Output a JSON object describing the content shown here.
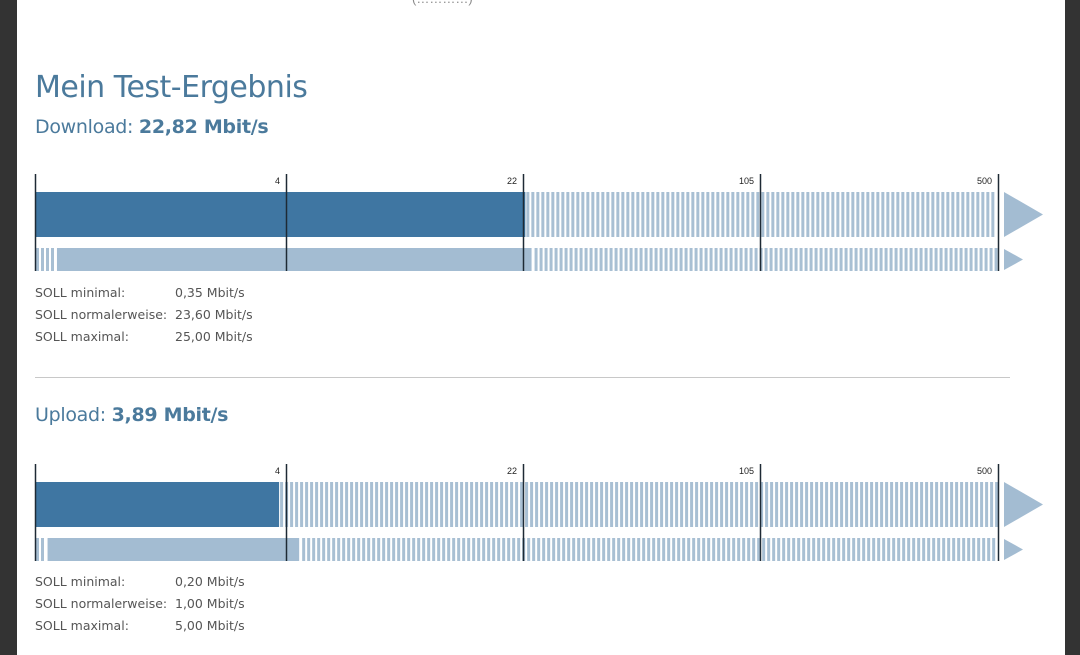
{
  "top_fragment": "(…………)",
  "title": "Mein Test-Ergebnis",
  "colors": {
    "measured": "#3f76a2",
    "range": "#a3bcd2",
    "stripe": "#a8bfd3",
    "tick": "#1e2a35",
    "arrow": "#a3bcd2"
  },
  "chart_data": [
    {
      "type": "bar",
      "name": "download",
      "label": "Download:",
      "value_text": "22,82 Mbit/s",
      "scale_ticks": [
        4,
        22,
        105,
        500
      ],
      "tick_labels": [
        "4",
        "22",
        "105",
        "500"
      ],
      "measured": 22.82,
      "soll_min": 0.35,
      "soll_normal": 23.6,
      "soll_max": 25.0,
      "soll": [
        {
          "label": "SOLL minimal:",
          "value": "0,35 Mbit/s"
        },
        {
          "label": "SOLL normalerweise:",
          "value": "23,60 Mbit/s"
        },
        {
          "label": "SOLL maximal:",
          "value": "25,00 Mbit/s"
        }
      ]
    },
    {
      "type": "bar",
      "name": "upload",
      "label": "Upload:",
      "value_text": "3,89 Mbit/s",
      "scale_ticks": [
        4,
        22,
        105,
        500
      ],
      "tick_labels": [
        "4",
        "22",
        "105",
        "500"
      ],
      "measured": 3.89,
      "soll_min": 0.2,
      "soll_normal": 1.0,
      "soll_max": 5.0,
      "soll": [
        {
          "label": "SOLL minimal:",
          "value": "0,20 Mbit/s"
        },
        {
          "label": "SOLL normalerweise:",
          "value": "1,00 Mbit/s"
        },
        {
          "label": "SOLL maximal:",
          "value": "5,00 Mbit/s"
        }
      ]
    }
  ]
}
